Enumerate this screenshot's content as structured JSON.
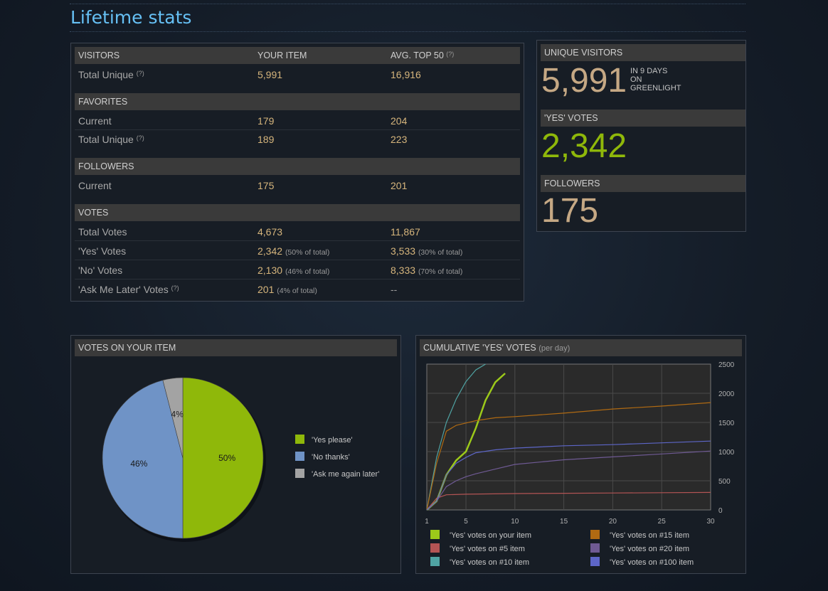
{
  "page": {
    "title": "Lifetime stats"
  },
  "stats_table": {
    "header": {
      "col1": "VISITORS",
      "col2": "YOUR ITEM",
      "col3": "AVG. TOP 50",
      "help": "(?)"
    },
    "visitors": [
      {
        "label": "Total Unique",
        "help": "(?)",
        "your": "5,991",
        "avg": "16,916"
      }
    ],
    "favorites": {
      "header": "FAVORITES",
      "rows": [
        {
          "label": "Current",
          "your": "179",
          "avg": "204"
        },
        {
          "label": "Total Unique",
          "help": "(?)",
          "your": "189",
          "avg": "223"
        }
      ]
    },
    "followers": {
      "header": "FOLLOWERS",
      "rows": [
        {
          "label": "Current",
          "your": "175",
          "avg": "201"
        }
      ]
    },
    "votes": {
      "header": "VOTES",
      "rows": [
        {
          "label": "Total Votes",
          "your": "4,673",
          "your_pct": "",
          "avg": "11,867",
          "avg_pct": ""
        },
        {
          "label": "'Yes' Votes",
          "your": "2,342",
          "your_pct": "(50% of total)",
          "avg": "3,533",
          "avg_pct": "(30% of total)"
        },
        {
          "label": "'No' Votes",
          "your": "2,130",
          "your_pct": "(46% of total)",
          "avg": "8,333",
          "avg_pct": "(70% of total)"
        },
        {
          "label": "'Ask Me Later' Votes",
          "help": "(?)",
          "your": "201",
          "your_pct": "(4% of total)",
          "avg": "--",
          "avg_pct": ""
        }
      ]
    }
  },
  "summary": {
    "unique_visitors": {
      "header": "UNIQUE VISITORS",
      "value": "5,991",
      "note1": "IN 9 DAYS",
      "note2": "ON",
      "note3": "GREENLIGHT"
    },
    "yes_votes": {
      "header": "'YES' VOTES",
      "value": "2,342"
    },
    "followers": {
      "header": "FOLLOWERS",
      "value": "175"
    }
  },
  "colors": {
    "accent_title": "#66c0f4",
    "value_gold": "#d6b57c",
    "yes_green": "#8fb80a",
    "no_blue": "#6f93c6",
    "later_gray": "#a3a3a3"
  },
  "chart_data": [
    {
      "type": "pie",
      "title": "VOTES ON YOUR ITEM",
      "categories": [
        "'Yes please'",
        "'No thanks'",
        "'Ask me again later'"
      ],
      "values": [
        50,
        46,
        4
      ],
      "slice_labels": [
        "50%",
        "46%",
        "4%"
      ],
      "colors": [
        "#8fb80a",
        "#6f93c6",
        "#a3a3a3"
      ],
      "legend": "right"
    },
    {
      "type": "line",
      "title": "CUMULATIVE 'YES' VOTES",
      "subtitle": "(per day)",
      "xlim": [
        1,
        30
      ],
      "ylim": [
        0,
        2500
      ],
      "xticks": [
        "1",
        "5",
        "10",
        "15",
        "20",
        "25",
        "30"
      ],
      "yticks": [
        "0",
        "500",
        "1000",
        "1500",
        "2000",
        "2500"
      ],
      "grid": true,
      "legend": "bottom",
      "series": [
        {
          "name": "'Yes' votes on your item",
          "color": "#9cc91a",
          "x": [
            1,
            2,
            3,
            4,
            5,
            6,
            7,
            8,
            9
          ],
          "y": [
            0,
            150,
            600,
            850,
            1000,
            1400,
            1880,
            2190,
            2342
          ]
        },
        {
          "name": "'Yes' votes on #5 item",
          "color": "#b35454",
          "x": [
            1,
            2,
            3,
            5,
            10,
            15,
            20,
            25,
            30
          ],
          "y": [
            0,
            200,
            260,
            270,
            280,
            285,
            290,
            295,
            300
          ]
        },
        {
          "name": "'Yes' votes on #10 item",
          "color": "#4fa3a3",
          "x": [
            1,
            2,
            3,
            4,
            5,
            6,
            7
          ],
          "y": [
            0,
            900,
            1500,
            1900,
            2200,
            2400,
            2500
          ]
        },
        {
          "name": "'Yes' votes on #15 item",
          "color": "#b06a12",
          "x": [
            1,
            2,
            3,
            4,
            5,
            6,
            8,
            10,
            15,
            20,
            25,
            30
          ],
          "y": [
            0,
            800,
            1350,
            1450,
            1490,
            1530,
            1580,
            1600,
            1660,
            1730,
            1780,
            1840
          ]
        },
        {
          "name": "'Yes' votes on #20 item",
          "color": "#6f5a94",
          "x": [
            1,
            2,
            3,
            4,
            5,
            6,
            8,
            10,
            15,
            20,
            25,
            30
          ],
          "y": [
            0,
            150,
            400,
            500,
            570,
            620,
            700,
            780,
            860,
            910,
            960,
            1010
          ]
        },
        {
          "name": "'Yes' votes on #100 item",
          "color": "#5d66c8",
          "x": [
            1,
            2,
            3,
            4,
            5,
            6,
            8,
            10,
            15,
            20,
            25,
            30
          ],
          "y": [
            0,
            150,
            600,
            800,
            900,
            980,
            1030,
            1060,
            1100,
            1120,
            1150,
            1180
          ]
        }
      ]
    }
  ]
}
